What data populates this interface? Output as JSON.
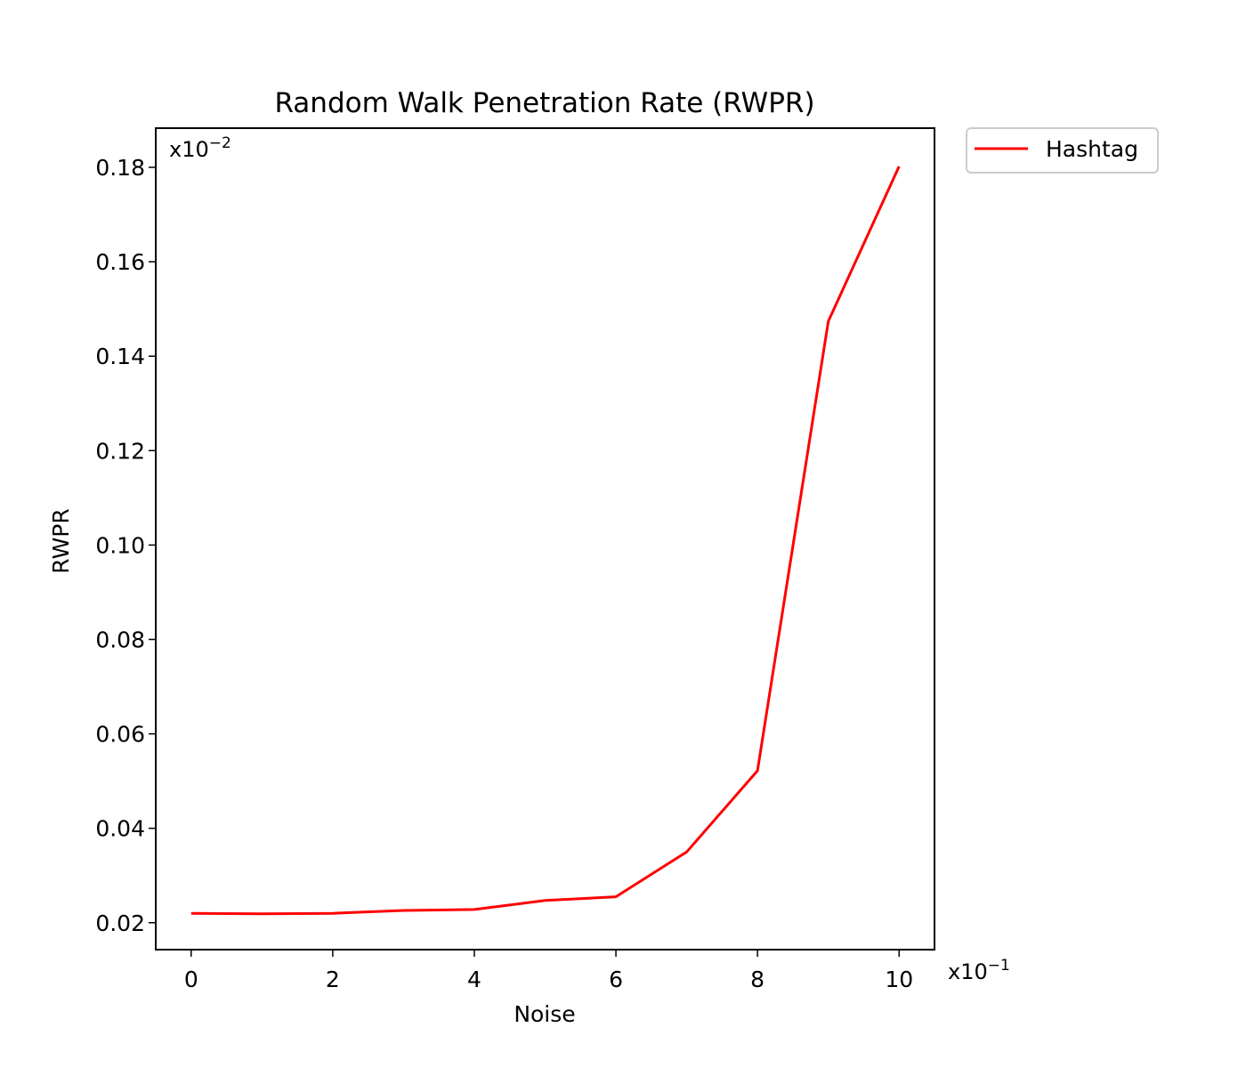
{
  "chart_data": {
    "type": "line",
    "title": "Random Walk Penetration Rate (RWPR)",
    "xlabel": "Noise",
    "ylabel": "RWPR",
    "x_multiplier": {
      "base": "x10",
      "exponent": "−1"
    },
    "y_multiplier": {
      "base": "x10",
      "exponent": "−2"
    },
    "xlim": [
      -0.5,
      10.5
    ],
    "ylim": [
      0.0143,
      0.1883
    ],
    "xticks": [
      0,
      2,
      4,
      6,
      8,
      10
    ],
    "xtick_labels": [
      "0",
      "2",
      "4",
      "6",
      "8",
      "10"
    ],
    "yticks": [
      0.02,
      0.04,
      0.06,
      0.08,
      0.1,
      0.12,
      0.14,
      0.16,
      0.18
    ],
    "ytick_labels": [
      "0.02",
      "0.04",
      "0.06",
      "0.08",
      "0.10",
      "0.12",
      "0.14",
      "0.16",
      "0.18"
    ],
    "grid": false,
    "legend_position": "outside-top-right",
    "series": [
      {
        "name": "Hashtag",
        "color": "#ff0000",
        "x": [
          0,
          1,
          2,
          3,
          4,
          5,
          6,
          7,
          8,
          9,
          10
        ],
        "y": [
          0.022,
          0.0219,
          0.022,
          0.0226,
          0.0228,
          0.0247,
          0.0255,
          0.035,
          0.0522,
          0.1474,
          0.1802
        ]
      }
    ]
  }
}
